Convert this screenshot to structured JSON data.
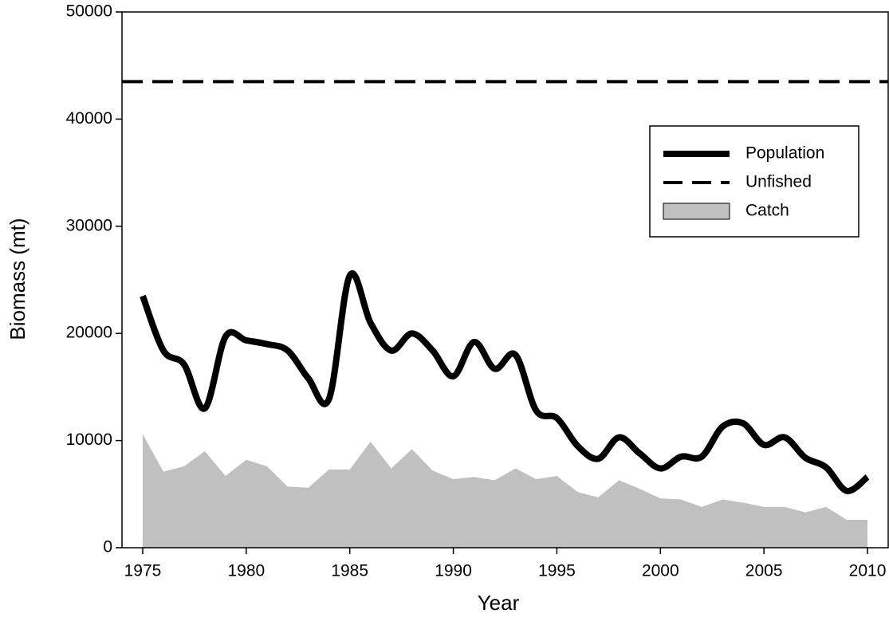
{
  "chart_data": {
    "type": "line",
    "x_label": "Year",
    "y_label": "Biomass (mt)",
    "x": [
      1975,
      1976,
      1977,
      1978,
      1979,
      1980,
      1981,
      1982,
      1983,
      1984,
      1985,
      1986,
      1987,
      1988,
      1989,
      1990,
      1991,
      1992,
      1993,
      1994,
      1995,
      1996,
      1997,
      1998,
      1999,
      2000,
      2001,
      2002,
      2003,
      2004,
      2005,
      2006,
      2007,
      2008,
      2009,
      2010
    ],
    "series": [
      {
        "name": "Population",
        "kind": "line",
        "color": "#000000",
        "values": [
          23500,
          18400,
          17100,
          13000,
          19700,
          19350,
          19000,
          18400,
          15800,
          13900,
          25400,
          21000,
          18400,
          20000,
          18400,
          16000,
          19200,
          16700,
          18000,
          12800,
          12100,
          9500,
          8300,
          10300,
          8800,
          7400,
          8500,
          8500,
          11300,
          11600,
          9600,
          10300,
          8400,
          7500,
          5300,
          6600
        ]
      },
      {
        "name": "Catch",
        "kind": "area",
        "color": "#c0c0c0",
        "values": [
          10600,
          7100,
          7600,
          9000,
          6700,
          8200,
          7600,
          5700,
          5600,
          7300,
          7300,
          9900,
          7400,
          9200,
          7200,
          6400,
          6600,
          6300,
          7400,
          6400,
          6700,
          5200,
          4700,
          6300,
          5500,
          4600,
          4500,
          3800,
          4500,
          4200,
          3800,
          3800,
          3300,
          3800,
          2600,
          2600
        ]
      }
    ],
    "reference_lines": [
      {
        "name": "Unfished",
        "value": 43500,
        "color": "#000000",
        "dashed": true
      }
    ],
    "xlim": [
      1974,
      2011
    ],
    "ylim": [
      0,
      50000
    ],
    "xticks": [
      1975,
      1980,
      1985,
      1990,
      1995,
      2000,
      2005,
      2010
    ],
    "yticks": [
      0,
      10000,
      20000,
      30000,
      40000,
      50000
    ],
    "legend": "upper right"
  }
}
